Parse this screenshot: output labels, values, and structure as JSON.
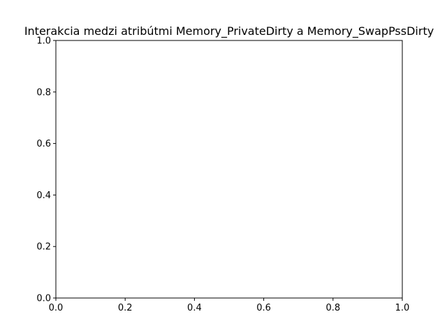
{
  "chart_data": {
    "type": "scatter",
    "title": "Interakcia medzi atribútmi Memory_PrivateDirty a Memory_SwapPssDirty",
    "xlabel": "",
    "ylabel": "",
    "xlim": [
      0,
      1
    ],
    "ylim": [
      0,
      1
    ],
    "xticks": [
      0.0,
      0.2,
      0.4,
      0.6,
      0.8,
      1.0
    ],
    "yticks": [
      0.0,
      0.2,
      0.4,
      0.6,
      0.8,
      1.0
    ],
    "xtick_labels": [
      "0.0",
      "0.2",
      "0.4",
      "0.6",
      "0.8",
      "1.0"
    ],
    "ytick_labels": [
      "0.0",
      "0.2",
      "0.4",
      "0.6",
      "0.8",
      "1.0"
    ],
    "grid": false,
    "series": []
  }
}
